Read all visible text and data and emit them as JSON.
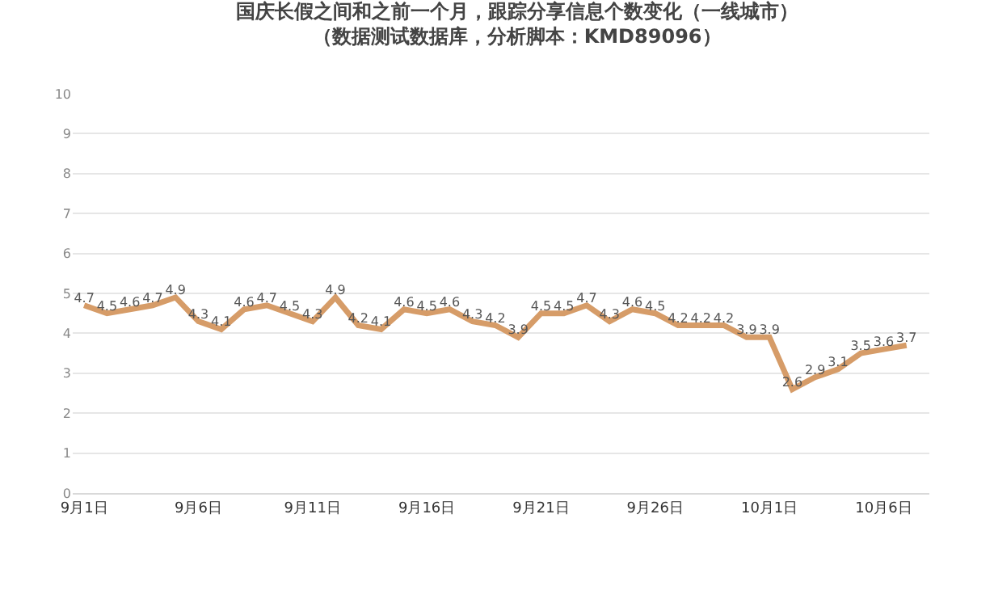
{
  "chart_data": {
    "type": "line",
    "title": "国庆长假之间和之前一个月，跟踪分享信息个数变化（一线城市）",
    "subtitle": "（数据测试数据库，分析脚本：KMD89096）",
    "x": [
      "--09-01",
      "--09-02",
      "--09-03",
      "--09-04",
      "--09-05",
      "--09-06",
      "--09-07",
      "--09-08",
      "--09-09",
      "--09-10",
      "--09-11",
      "--09-12",
      "--09-13",
      "--09-14",
      "--09-15",
      "--09-16",
      "--09-17",
      "--09-18",
      "--09-19",
      "--09-20",
      "--09-21",
      "--09-22",
      "--09-23",
      "--09-24",
      "--09-25",
      "--09-26",
      "--09-27",
      "--09-28",
      "--09-29",
      "--09-30",
      "--10-01",
      "--10-02",
      "--10-03",
      "--10-04",
      "--10-05",
      "--10-06",
      "--10-07"
    ],
    "series": [
      {
        "color": "#d69c68",
        "values": [
          4.7,
          4.5,
          4.6,
          4.7,
          4.9,
          4.3,
          4.1,
          4.6,
          4.7,
          4.5,
          4.3,
          4.9,
          4.2,
          4.1,
          4.6,
          4.5,
          4.6,
          4.3,
          4.2,
          3.9,
          4.5,
          4.5,
          4.7,
          4.3,
          4.6,
          4.5,
          4.2,
          4.2,
          4.2,
          3.9,
          3.9,
          2.6,
          2.9,
          3.1,
          3.5,
          3.6,
          3.7
        ]
      }
    ],
    "xlim": [
      "--08-31T12:00",
      "--10-08"
    ],
    "xticks": [
      {
        "value": "--09-01",
        "label": "9月1日"
      },
      {
        "value": "--09-06",
        "label": "9月6日"
      },
      {
        "value": "--09-11",
        "label": "9月11日"
      },
      {
        "value": "--09-16",
        "label": "9月16日"
      },
      {
        "value": "--09-21",
        "label": "9月21日"
      },
      {
        "value": "--09-26",
        "label": "9月26日"
      },
      {
        "value": "--10-01",
        "label": "10月1日"
      },
      {
        "value": "--10-06",
        "label": "10月6日"
      }
    ],
    "ylim": [
      0,
      10
    ],
    "yticks": [
      0,
      1,
      2,
      3,
      4,
      5,
      6,
      7,
      8,
      9,
      10
    ],
    "grid": "y",
    "legend": false,
    "marker": "none",
    "line_style": "solid",
    "data_labels": true
  }
}
